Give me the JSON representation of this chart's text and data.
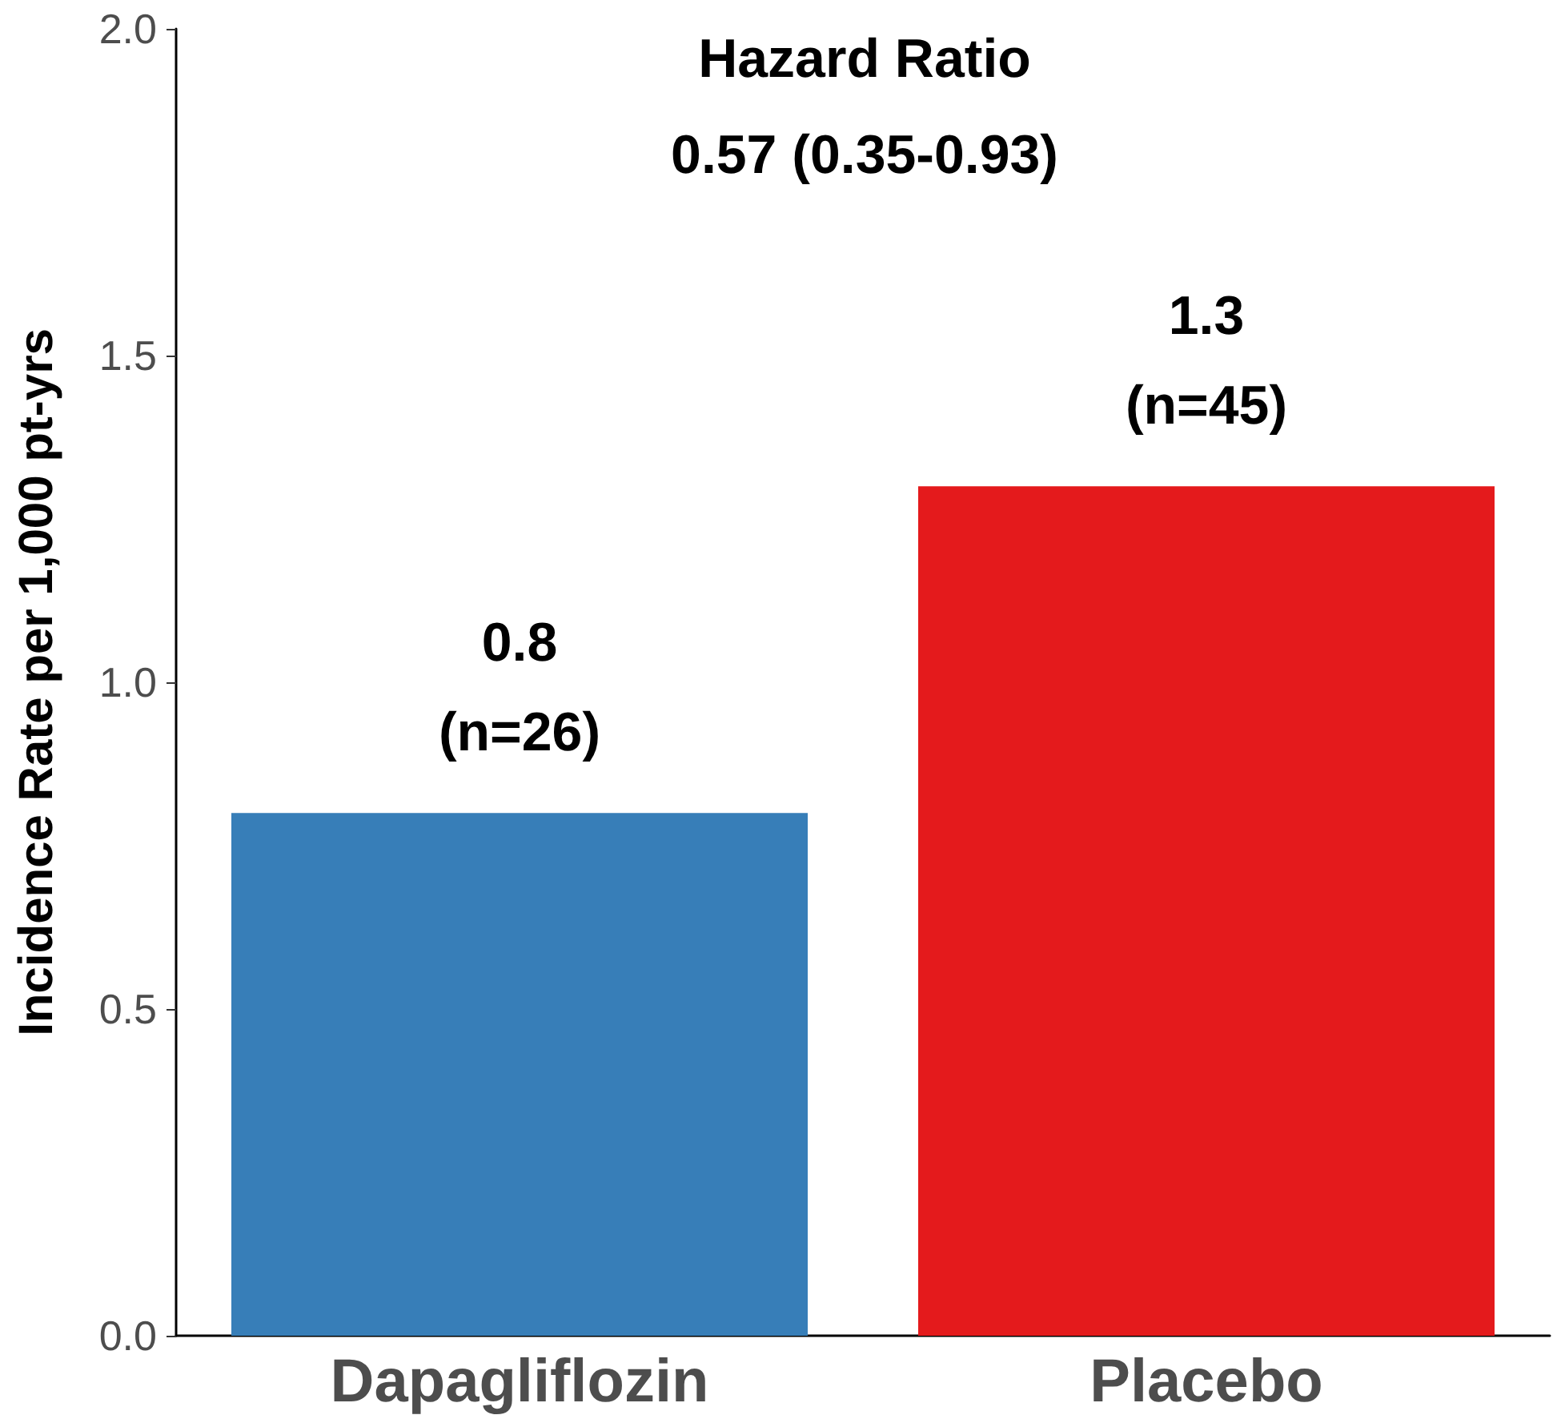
{
  "chart_data": {
    "type": "bar",
    "ylabel": "Incidence Rate per 1,000 pt-yrs",
    "categories": [
      "Dapagliflozin",
      "Placebo"
    ],
    "values": [
      0.8,
      1.3
    ],
    "colors": [
      "#377eb8",
      "#e41a1c"
    ],
    "value_labels": [
      "0.8\n(n=26)",
      "1.3\n(n=45)"
    ],
    "ylim": [
      0,
      2
    ],
    "yticks": [
      {
        "value": 0,
        "label": "0.0"
      },
      {
        "value": 0.5,
        "label": "0.5"
      },
      {
        "value": 1,
        "label": "1.0"
      },
      {
        "value": 1.5,
        "label": "1.5"
      },
      {
        "value": 2,
        "label": "2.0"
      }
    ],
    "annotations": [
      "Hazard Ratio",
      "0.57 (0.35-0.93)"
    ],
    "grid": false
  }
}
